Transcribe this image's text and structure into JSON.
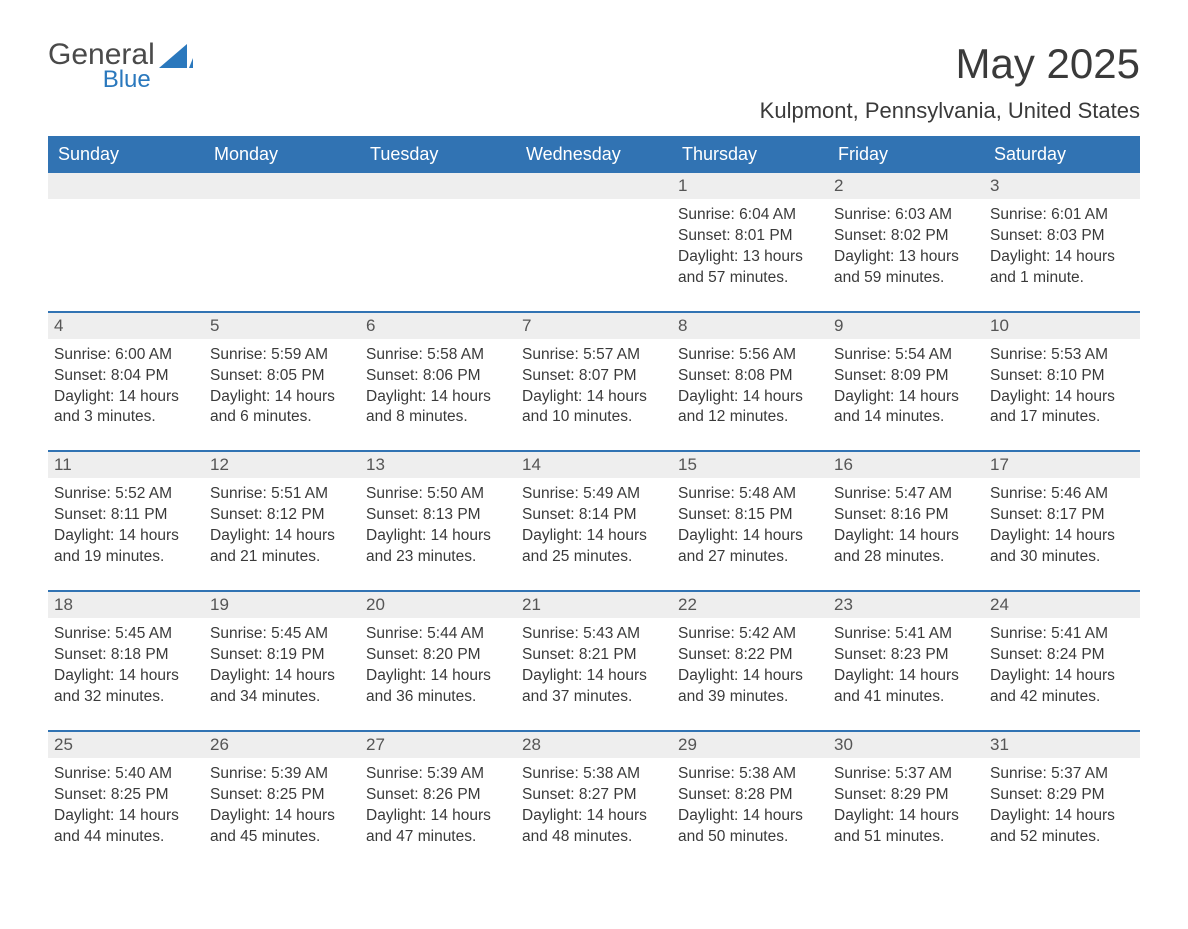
{
  "brand": {
    "word1": "General",
    "word2": "Blue"
  },
  "title": "May 2025",
  "location": "Kulpmont, Pennsylvania, United States",
  "colors": {
    "header_bg": "#3173b3",
    "header_text": "#ffffff",
    "row_border": "#3173b3",
    "daynum_bg": "#eeeeee",
    "body_text": "#3a3a3a",
    "brand_blue": "#2a78bd",
    "page_bg": "#ffffff"
  },
  "typography": {
    "title_fontsize": 42,
    "location_fontsize": 22,
    "header_fontsize": 18,
    "daynum_fontsize": 17,
    "info_fontsize": 15.5,
    "font_family": "Arial"
  },
  "columns": [
    "Sunday",
    "Monday",
    "Tuesday",
    "Wednesday",
    "Thursday",
    "Friday",
    "Saturday"
  ],
  "weeks": [
    [
      {
        "blank": true
      },
      {
        "blank": true
      },
      {
        "blank": true
      },
      {
        "blank": true
      },
      {
        "day": "1",
        "sunrise": "Sunrise: 6:04 AM",
        "sunset": "Sunset: 8:01 PM",
        "daylight": "Daylight: 13 hours and 57 minutes."
      },
      {
        "day": "2",
        "sunrise": "Sunrise: 6:03 AM",
        "sunset": "Sunset: 8:02 PM",
        "daylight": "Daylight: 13 hours and 59 minutes."
      },
      {
        "day": "3",
        "sunrise": "Sunrise: 6:01 AM",
        "sunset": "Sunset: 8:03 PM",
        "daylight": "Daylight: 14 hours and 1 minute."
      }
    ],
    [
      {
        "day": "4",
        "sunrise": "Sunrise: 6:00 AM",
        "sunset": "Sunset: 8:04 PM",
        "daylight": "Daylight: 14 hours and 3 minutes."
      },
      {
        "day": "5",
        "sunrise": "Sunrise: 5:59 AM",
        "sunset": "Sunset: 8:05 PM",
        "daylight": "Daylight: 14 hours and 6 minutes."
      },
      {
        "day": "6",
        "sunrise": "Sunrise: 5:58 AM",
        "sunset": "Sunset: 8:06 PM",
        "daylight": "Daylight: 14 hours and 8 minutes."
      },
      {
        "day": "7",
        "sunrise": "Sunrise: 5:57 AM",
        "sunset": "Sunset: 8:07 PM",
        "daylight": "Daylight: 14 hours and 10 minutes."
      },
      {
        "day": "8",
        "sunrise": "Sunrise: 5:56 AM",
        "sunset": "Sunset: 8:08 PM",
        "daylight": "Daylight: 14 hours and 12 minutes."
      },
      {
        "day": "9",
        "sunrise": "Sunrise: 5:54 AM",
        "sunset": "Sunset: 8:09 PM",
        "daylight": "Daylight: 14 hours and 14 minutes."
      },
      {
        "day": "10",
        "sunrise": "Sunrise: 5:53 AM",
        "sunset": "Sunset: 8:10 PM",
        "daylight": "Daylight: 14 hours and 17 minutes."
      }
    ],
    [
      {
        "day": "11",
        "sunrise": "Sunrise: 5:52 AM",
        "sunset": "Sunset: 8:11 PM",
        "daylight": "Daylight: 14 hours and 19 minutes."
      },
      {
        "day": "12",
        "sunrise": "Sunrise: 5:51 AM",
        "sunset": "Sunset: 8:12 PM",
        "daylight": "Daylight: 14 hours and 21 minutes."
      },
      {
        "day": "13",
        "sunrise": "Sunrise: 5:50 AM",
        "sunset": "Sunset: 8:13 PM",
        "daylight": "Daylight: 14 hours and 23 minutes."
      },
      {
        "day": "14",
        "sunrise": "Sunrise: 5:49 AM",
        "sunset": "Sunset: 8:14 PM",
        "daylight": "Daylight: 14 hours and 25 minutes."
      },
      {
        "day": "15",
        "sunrise": "Sunrise: 5:48 AM",
        "sunset": "Sunset: 8:15 PM",
        "daylight": "Daylight: 14 hours and 27 minutes."
      },
      {
        "day": "16",
        "sunrise": "Sunrise: 5:47 AM",
        "sunset": "Sunset: 8:16 PM",
        "daylight": "Daylight: 14 hours and 28 minutes."
      },
      {
        "day": "17",
        "sunrise": "Sunrise: 5:46 AM",
        "sunset": "Sunset: 8:17 PM",
        "daylight": "Daylight: 14 hours and 30 minutes."
      }
    ],
    [
      {
        "day": "18",
        "sunrise": "Sunrise: 5:45 AM",
        "sunset": "Sunset: 8:18 PM",
        "daylight": "Daylight: 14 hours and 32 minutes."
      },
      {
        "day": "19",
        "sunrise": "Sunrise: 5:45 AM",
        "sunset": "Sunset: 8:19 PM",
        "daylight": "Daylight: 14 hours and 34 minutes."
      },
      {
        "day": "20",
        "sunrise": "Sunrise: 5:44 AM",
        "sunset": "Sunset: 8:20 PM",
        "daylight": "Daylight: 14 hours and 36 minutes."
      },
      {
        "day": "21",
        "sunrise": "Sunrise: 5:43 AM",
        "sunset": "Sunset: 8:21 PM",
        "daylight": "Daylight: 14 hours and 37 minutes."
      },
      {
        "day": "22",
        "sunrise": "Sunrise: 5:42 AM",
        "sunset": "Sunset: 8:22 PM",
        "daylight": "Daylight: 14 hours and 39 minutes."
      },
      {
        "day": "23",
        "sunrise": "Sunrise: 5:41 AM",
        "sunset": "Sunset: 8:23 PM",
        "daylight": "Daylight: 14 hours and 41 minutes."
      },
      {
        "day": "24",
        "sunrise": "Sunrise: 5:41 AM",
        "sunset": "Sunset: 8:24 PM",
        "daylight": "Daylight: 14 hours and 42 minutes."
      }
    ],
    [
      {
        "day": "25",
        "sunrise": "Sunrise: 5:40 AM",
        "sunset": "Sunset: 8:25 PM",
        "daylight": "Daylight: 14 hours and 44 minutes."
      },
      {
        "day": "26",
        "sunrise": "Sunrise: 5:39 AM",
        "sunset": "Sunset: 8:25 PM",
        "daylight": "Daylight: 14 hours and 45 minutes."
      },
      {
        "day": "27",
        "sunrise": "Sunrise: 5:39 AM",
        "sunset": "Sunset: 8:26 PM",
        "daylight": "Daylight: 14 hours and 47 minutes."
      },
      {
        "day": "28",
        "sunrise": "Sunrise: 5:38 AM",
        "sunset": "Sunset: 8:27 PM",
        "daylight": "Daylight: 14 hours and 48 minutes."
      },
      {
        "day": "29",
        "sunrise": "Sunrise: 5:38 AM",
        "sunset": "Sunset: 8:28 PM",
        "daylight": "Daylight: 14 hours and 50 minutes."
      },
      {
        "day": "30",
        "sunrise": "Sunrise: 5:37 AM",
        "sunset": "Sunset: 8:29 PM",
        "daylight": "Daylight: 14 hours and 51 minutes."
      },
      {
        "day": "31",
        "sunrise": "Sunrise: 5:37 AM",
        "sunset": "Sunset: 8:29 PM",
        "daylight": "Daylight: 14 hours and 52 minutes."
      }
    ]
  ]
}
